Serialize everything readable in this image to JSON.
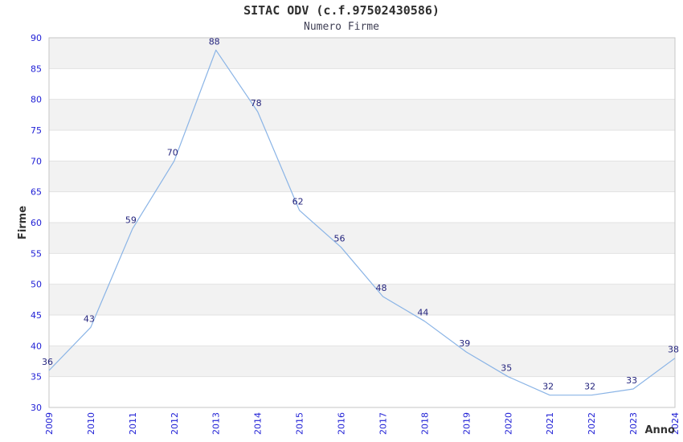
{
  "header": {
    "title": "SITAC ODV (c.f.97502430586)",
    "subtitle": "Numero Firme"
  },
  "chart_data": {
    "type": "line",
    "title": "SITAC ODV (c.f.97502430586)",
    "subtitle": "Numero Firme",
    "xlabel": "Anno",
    "ylabel": "Firme",
    "categories": [
      "2009",
      "2010",
      "2011",
      "2012",
      "2013",
      "2014",
      "2015",
      "2016",
      "2017",
      "2018",
      "2019",
      "2020",
      "2021",
      "2022",
      "2023",
      "2024"
    ],
    "values": [
      36,
      43,
      59,
      70,
      88,
      78,
      62,
      56,
      48,
      44,
      39,
      35,
      32,
      32,
      33,
      38
    ],
    "ylim": [
      30,
      90
    ],
    "ytick_step": 5,
    "yticks": [
      30,
      35,
      40,
      45,
      50,
      55,
      60,
      65,
      70,
      75,
      80,
      85,
      90
    ],
    "grid": "horizontal-bands-alternating",
    "legend": "none",
    "colors": {
      "line": "#8ab4e6",
      "data_label": "#24247d",
      "tick_label": "#2121d6",
      "band_gray": "#f2f2f2",
      "band_white": "#ffffff",
      "gridline": "#e2e2e2",
      "plot_border": "#c6c6c6",
      "title": "#2e2e2e",
      "subtitle": "#3f3f54",
      "axis_label": "#333333",
      "background": "#ffffff"
    }
  }
}
